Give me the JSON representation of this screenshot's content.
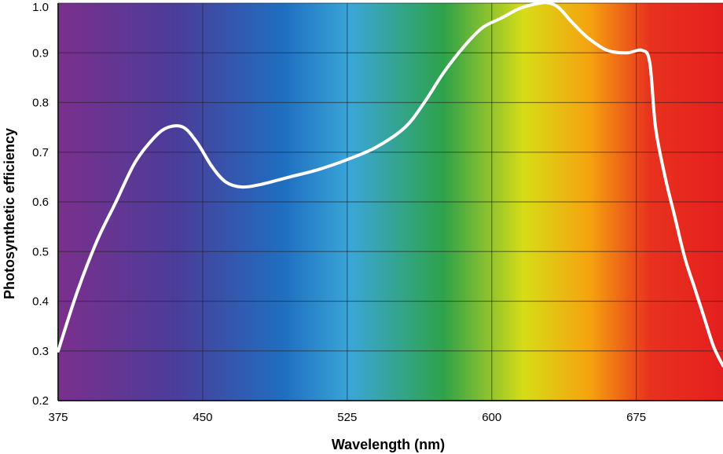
{
  "chart_data": {
    "type": "line",
    "title": "",
    "xlabel": "Wavelength (nm)",
    "ylabel": "Photosynthetic efficiency",
    "xlim": [
      375,
      720
    ],
    "ylim": [
      0.2,
      1.0
    ],
    "x_ticks": [
      "375",
      "450",
      "525",
      "600",
      "675"
    ],
    "y_ticks": [
      "1.0",
      "0.9",
      "0.8",
      "0.7",
      "0.6",
      "0.5",
      "0.4",
      "0.3",
      "0.2"
    ],
    "grid": true,
    "background": "visible light spectrum gradient (violet to red)",
    "spectrum_colors": [
      "#7b2f8c",
      "#4a3d9a",
      "#1f6fc0",
      "#3aa6d8",
      "#2ea24a",
      "#d7dc17",
      "#f5a20f",
      "#e8321e",
      "#e41f1f"
    ],
    "line_color": "#ffffff",
    "series": [
      {
        "x": [
          375,
          385,
          395,
          405,
          415,
          425,
          432,
          440,
          447,
          455,
          462,
          470,
          480,
          495,
          510,
          525,
          540,
          555,
          565,
          575,
          585,
          595,
          605,
          615,
          625,
          630,
          635,
          642,
          650,
          660,
          670,
          678,
          682,
          685,
          690,
          695,
          700,
          705,
          710,
          715,
          720
        ],
        "y": [
          0.3,
          0.42,
          0.52,
          0.6,
          0.68,
          0.73,
          0.75,
          0.75,
          0.72,
          0.67,
          0.64,
          0.63,
          0.635,
          0.65,
          0.665,
          0.685,
          0.71,
          0.75,
          0.8,
          0.86,
          0.91,
          0.95,
          0.97,
          0.99,
          1.0,
          1.0,
          0.99,
          0.96,
          0.93,
          0.905,
          0.9,
          0.905,
          0.88,
          0.75,
          0.65,
          0.57,
          0.49,
          0.43,
          0.37,
          0.31,
          0.27
        ]
      }
    ]
  }
}
